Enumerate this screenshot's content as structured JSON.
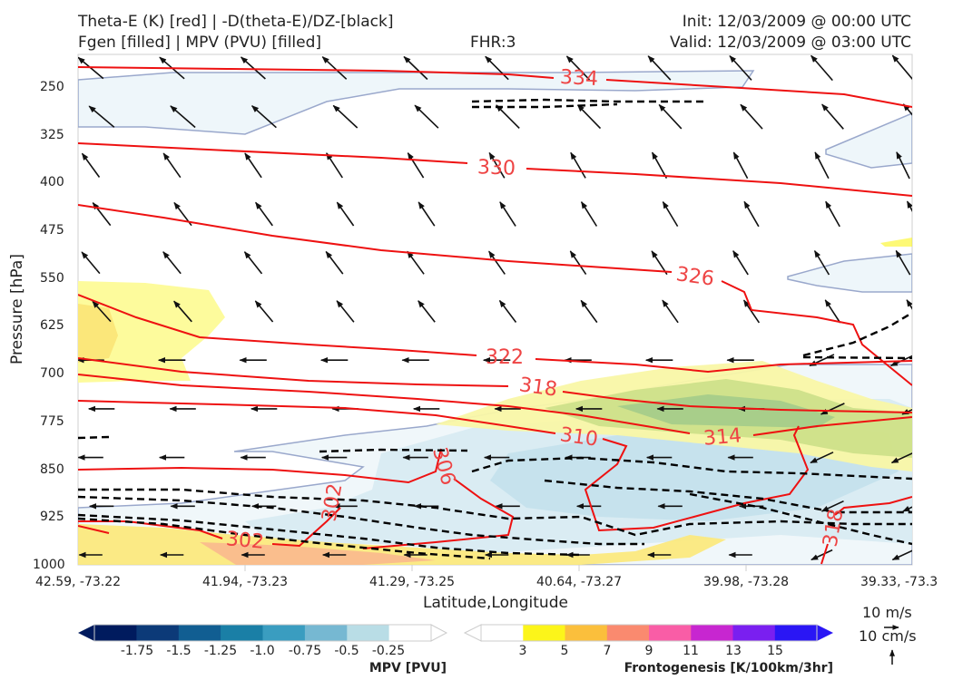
{
  "header": {
    "title_line1": "Theta-E (K) [red] | -D(theta-E)/DZ-[black]",
    "title_line2": "Fgen [filled] | MPV (PVU) [filled]",
    "fhr": "FHR:3",
    "init": "Init: 12/03/2009 @ 00:00 UTC",
    "valid": "Valid: 12/03/2009 @ 03:00 UTC"
  },
  "colors": {
    "theta_e": "#ee1111",
    "stability": "#000000",
    "mpv_outline": "#9aa8cc",
    "mpv_fill": [
      "#001b5e",
      "#0c3a78",
      "#115e92",
      "#1a7fa6",
      "#3a9dc0",
      "#76b8d2",
      "#b9dde6",
      "#ffffff"
    ],
    "fgen_fill": [
      "#ffffff",
      "#fcf51a",
      "#fbbf3c",
      "#fa8a6f",
      "#f95da6",
      "#c726d0",
      "#7a1ff0",
      "#2a16f5"
    ]
  },
  "chart_data": {
    "type": "cross-section",
    "xlabel": "Latitude,Longitude",
    "ylabel": "Pressure [hPa]",
    "x_ticks": [
      "42.59, -73.22",
      "41.94, -73.23",
      "41.29, -73.25",
      "40.64, -73.27",
      "39.98, -73.28",
      "39.33, -73.3"
    ],
    "y_ticks": [
      250,
      325,
      400,
      475,
      550,
      625,
      700,
      775,
      850,
      925,
      1000
    ],
    "ylim": [
      1000,
      200
    ],
    "y_scale": "inverted",
    "theta_e_labels": [
      "334",
      "330",
      "326",
      "322",
      "318",
      "314",
      "310",
      "306",
      "302",
      "302",
      "318"
    ],
    "mpv_colorbar": {
      "title": "MPV [PVU]",
      "ticks": [
        "-1.75",
        "-1.5",
        "-1.25",
        "-1.0",
        "-0.75",
        "-0.5",
        "-0.25"
      ]
    },
    "fgen_colorbar": {
      "title": "Frontogenesis [K/100km/3hr]",
      "ticks": [
        "3",
        "5",
        "7",
        "9",
        "11",
        "13",
        "15"
      ]
    },
    "reference_vectors": [
      "10 m/s",
      "10 cm/s"
    ]
  }
}
